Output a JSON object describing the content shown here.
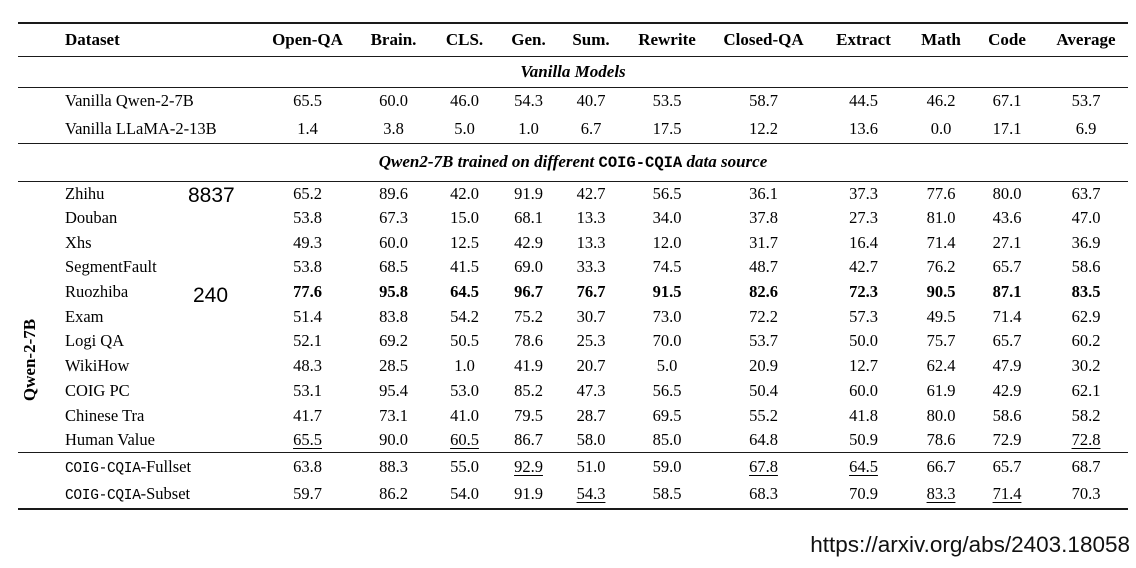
{
  "footer": {
    "url": "https://arxiv.org/abs/2403.18058"
  },
  "annotations": [
    {
      "text": "8837",
      "near_row": "Zhihu"
    },
    {
      "text": "240",
      "near_row": "Ruozhiba"
    }
  ],
  "table": {
    "group_label": "Qwen-2-7B",
    "columns": [
      "Dataset",
      "Open-QA",
      "Brain.",
      "CLS.",
      "Gen.",
      "Sum.",
      "Rewrite",
      "Closed-QA",
      "Extract",
      "Math",
      "Code",
      "Average"
    ],
    "sections": [
      {
        "title_parts": [
          {
            "text": "Vanilla Models"
          }
        ],
        "band_class": "band1",
        "row_class": "vrow",
        "rows": [
          {
            "label": "Vanilla Qwen-2-7B",
            "values": [
              "65.5",
              "60.0",
              "46.0",
              "54.3",
              "40.7",
              "53.5",
              "58.7",
              "44.5",
              "46.2",
              "67.1",
              "53.7"
            ]
          },
          {
            "label": "Vanilla LLaMA-2-13B",
            "values": [
              "1.4",
              "3.8",
              "5.0",
              "1.0",
              "6.7",
              "17.5",
              "12.2",
              "13.6",
              "0.0",
              "17.1",
              "6.9"
            ]
          }
        ]
      },
      {
        "title_parts": [
          {
            "text": "Qwen2-7B trained on different "
          },
          {
            "text": "COIG-CQIA",
            "mono": true
          },
          {
            "text": " data source"
          }
        ],
        "band_class": "band2",
        "row_class": "brow",
        "rows": [
          {
            "label": "Zhihu",
            "values": [
              "65.2",
              "89.6",
              "42.0",
              "91.9",
              "42.7",
              "56.5",
              "36.1",
              "37.3",
              "77.6",
              "80.0",
              "63.7"
            ]
          },
          {
            "label": "Douban",
            "values": [
              "53.8",
              "67.3",
              "15.0",
              "68.1",
              "13.3",
              "34.0",
              "37.8",
              "27.3",
              "81.0",
              "43.6",
              "47.0"
            ]
          },
          {
            "label": "Xhs",
            "values": [
              "49.3",
              "60.0",
              "12.5",
              "42.9",
              "13.3",
              "12.0",
              "31.7",
              "16.4",
              "71.4",
              "27.1",
              "36.9"
            ]
          },
          {
            "label": "SegmentFault",
            "values": [
              "53.8",
              "68.5",
              "41.5",
              "69.0",
              "33.3",
              "74.5",
              "48.7",
              "42.7",
              "76.2",
              "65.7",
              "58.6"
            ]
          },
          {
            "label": "Ruozhiba",
            "values": [
              {
                "v": "77.6",
                "b": true
              },
              {
                "v": "95.8",
                "b": true
              },
              {
                "v": "64.5",
                "b": true
              },
              {
                "v": "96.7",
                "b": true
              },
              {
                "v": "76.7",
                "b": true
              },
              {
                "v": "91.5",
                "b": true
              },
              {
                "v": "82.6",
                "b": true
              },
              {
                "v": "72.3",
                "b": true
              },
              {
                "v": "90.5",
                "b": true
              },
              {
                "v": "87.1",
                "b": true
              },
              {
                "v": "83.5",
                "b": true
              }
            ]
          },
          {
            "label": "Exam",
            "values": [
              "51.4",
              "83.8",
              "54.2",
              "75.2",
              "30.7",
              "73.0",
              "72.2",
              "57.3",
              "49.5",
              "71.4",
              "62.9"
            ]
          },
          {
            "label": "Logi QA",
            "values": [
              "52.1",
              "69.2",
              "50.5",
              "78.6",
              "25.3",
              "70.0",
              "53.7",
              "50.0",
              "75.7",
              "65.7",
              "60.2"
            ]
          },
          {
            "label": "WikiHow",
            "values": [
              "48.3",
              "28.5",
              "1.0",
              "41.9",
              "20.7",
              "5.0",
              "20.9",
              "12.7",
              "62.4",
              "47.9",
              "30.2"
            ]
          },
          {
            "label": "COIG PC",
            "values": [
              "53.1",
              "95.4",
              "53.0",
              "85.2",
              "47.3",
              "56.5",
              "50.4",
              "60.0",
              "61.9",
              "42.9",
              "62.1"
            ]
          },
          {
            "label": "Chinese Tra",
            "values": [
              "41.7",
              "73.1",
              "41.0",
              "79.5",
              "28.7",
              "69.5",
              "55.2",
              "41.8",
              "80.0",
              "58.6",
              "58.2"
            ]
          },
          {
            "label": "Human Value",
            "values": [
              {
                "v": "65.5",
                "u": true
              },
              "90.0",
              {
                "v": "60.5",
                "u": true
              },
              "86.7",
              "58.0",
              "85.0",
              "64.8",
              "50.9",
              "78.6",
              "72.9",
              {
                "v": "72.8",
                "u": true
              }
            ]
          }
        ]
      },
      {
        "row_class": "crow",
        "rows": [
          {
            "label": [
              {
                "text": "COIG-CQIA",
                "mono": true
              },
              {
                "text": "-Fullset"
              }
            ],
            "rule_above": true,
            "values": [
              "63.8",
              "88.3",
              "55.0",
              {
                "v": "92.9",
                "u": true
              },
              "51.0",
              "59.0",
              {
                "v": "67.8",
                "u": true
              },
              {
                "v": "64.5",
                "u": true
              },
              "66.7",
              "65.7",
              "68.7"
            ]
          },
          {
            "label": [
              {
                "text": "COIG-CQIA",
                "mono": true
              },
              {
                "text": "-Subset"
              }
            ],
            "values": [
              "59.7",
              "86.2",
              "54.0",
              "91.9",
              {
                "v": "54.3",
                "u": true
              },
              "58.5",
              "68.3",
              "70.9",
              {
                "v": "83.3",
                "u": true
              },
              {
                "v": "71.4",
                "u": true
              },
              "70.3"
            ]
          }
        ]
      }
    ]
  }
}
